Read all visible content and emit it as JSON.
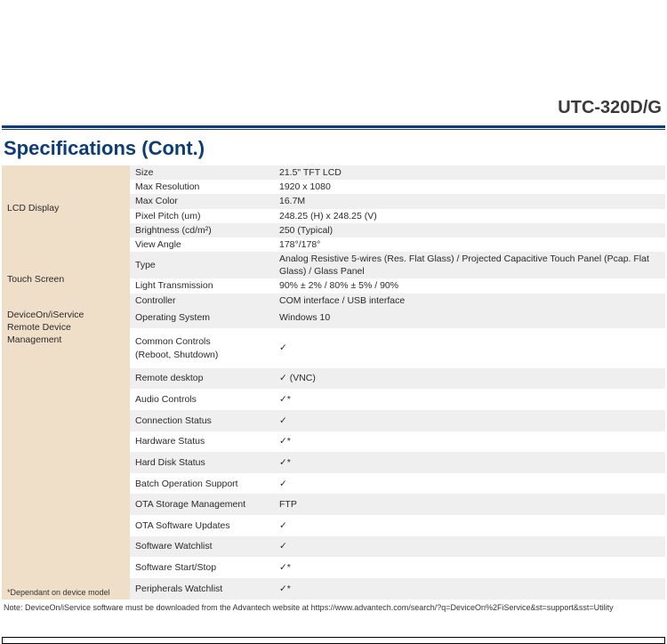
{
  "header": {
    "model": "UTC-320D/G"
  },
  "section_title": "Specifications (Cont.)",
  "colors": {
    "accent": "#0e3c74",
    "category_bg": "#efdfc8",
    "row_alt_bg": "#efefef",
    "text": "#2a2a2a"
  },
  "groups": [
    {
      "name": "LCD Display",
      "footnote": "",
      "rows": [
        {
          "label": "Size",
          "value": "21.5\" TFT LCD"
        },
        {
          "label": "Max Resolution",
          "value": "1920 x 1080"
        },
        {
          "label": "Max Color",
          "value": "16.7M"
        },
        {
          "label": "Pixel Pitch (um)",
          "value": "248.25 (H) x 248.25 (V)"
        },
        {
          "label": "Brightness (cd/m²)",
          "value": "250 (Typical)"
        },
        {
          "label": "View Angle",
          "value": "178°/178°"
        }
      ]
    },
    {
      "name": "Touch Screen",
      "footnote": "",
      "rows": [
        {
          "label": "Type",
          "value": "Analog Resistive 5-wires (Res. Flat Glass) / Projected Capacitive Touch Panel (Pcap. Flat Glass) / Glass Panel"
        },
        {
          "label": "Light Transmission",
          "value": "90% ± 2% / 80% ± 5% / 90%"
        },
        {
          "label": "Controller",
          "value": "COM interface / USB interface"
        }
      ]
    },
    {
      "name": "DeviceOn/iService\nRemote Device Management",
      "footnote": "*Dependant on device model",
      "rows": [
        {
          "label": "Operating System",
          "value": "Windows 10"
        },
        {
          "label": "Common Controls\n(Reboot, Shutdown)",
          "value": "✓"
        },
        {
          "label": "Remote desktop",
          "value": "✓ (VNC)"
        },
        {
          "label": "Audio Controls",
          "value": "✓*"
        },
        {
          "label": "Connection Status",
          "value": "✓"
        },
        {
          "label": "Hardware Status",
          "value": "✓*"
        },
        {
          "label": "Hard Disk Status",
          "value": "✓*"
        },
        {
          "label": "Batch Operation Support",
          "value": "✓"
        },
        {
          "label": "OTA Storage Management",
          "value": "FTP"
        },
        {
          "label": "OTA Software Updates",
          "value": "✓"
        },
        {
          "label": "Software Watchlist",
          "value": "✓"
        },
        {
          "label": "Software Start/Stop",
          "value": "✓*"
        },
        {
          "label": "Peripherals Watchlist",
          "value": "✓*"
        }
      ]
    }
  ],
  "note": "Note: DeviceOn/iService software must be downloaded from the Advantech website at https://www.advantech.com/search/?q=DeviceOn%2FiService&st=support&sst=Utility"
}
